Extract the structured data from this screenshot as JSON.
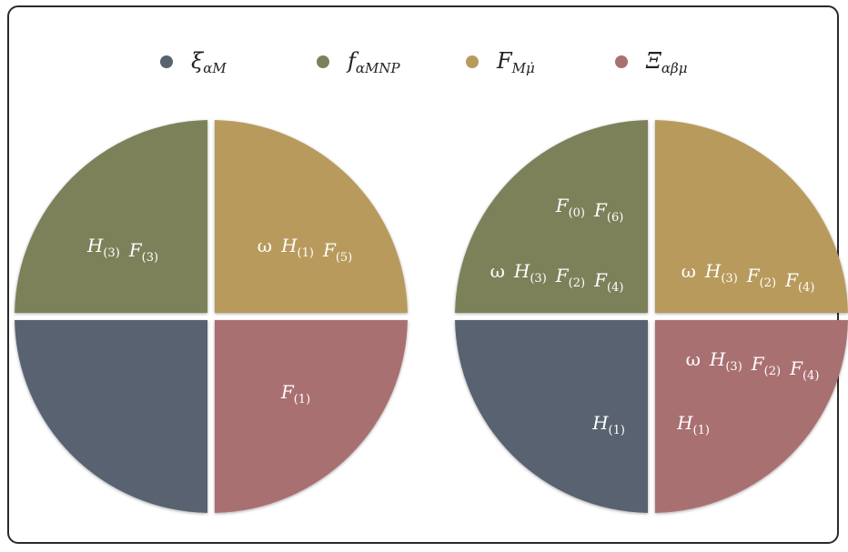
{
  "legend": [
    {
      "label": "ξ",
      "sub": "αM",
      "color": "#59626f"
    },
    {
      "label": "f",
      "sub": "αMNP",
      "color": "#7d815a"
    },
    {
      "label": "F",
      "sub": "Mμ̇",
      "color": "#b89a5c"
    },
    {
      "label": "Ξ",
      "sub": "αβμ",
      "color": "#a97072"
    }
  ],
  "diagrams": [
    {
      "quadrants": {
        "top_left": [
          [
            {
              "t": "H",
              "s": "(3)"
            },
            {
              "t": "F",
              "s": "(3)"
            }
          ]
        ],
        "top_right": [
          [
            {
              "t": "ω",
              "s": ""
            },
            {
              "t": "H",
              "s": "(1)"
            },
            {
              "t": "F",
              "s": "(5)"
            }
          ]
        ],
        "bottom_left": [],
        "bottom_right": [
          [
            {
              "t": "F",
              "s": "(1)"
            }
          ]
        ]
      }
    },
    {
      "quadrants": {
        "top_left": [
          [
            {
              "t": "F",
              "s": "(0)"
            },
            {
              "t": "F",
              "s": "(6)"
            }
          ],
          [
            {
              "t": "ω",
              "s": ""
            },
            {
              "t": "H",
              "s": "(3)"
            },
            {
              "t": "F",
              "s": "(2)"
            },
            {
              "t": "F",
              "s": "(4)"
            }
          ]
        ],
        "top_right": [
          [
            {
              "t": "ω",
              "s": ""
            },
            {
              "t": "H",
              "s": "(3)"
            },
            {
              "t": "F",
              "s": "(2)"
            },
            {
              "t": "F",
              "s": "(4)"
            }
          ]
        ],
        "bottom_left": [
          [
            {
              "t": "H",
              "s": "(1)"
            }
          ]
        ],
        "bottom_right": [
          [
            {
              "t": "ω",
              "s": ""
            },
            {
              "t": "H",
              "s": "(3)"
            },
            {
              "t": "F",
              "s": "(2)"
            },
            {
              "t": "F",
              "s": "(4)"
            }
          ],
          [
            {
              "t": "H",
              "s": "(1)"
            }
          ]
        ]
      }
    }
  ]
}
